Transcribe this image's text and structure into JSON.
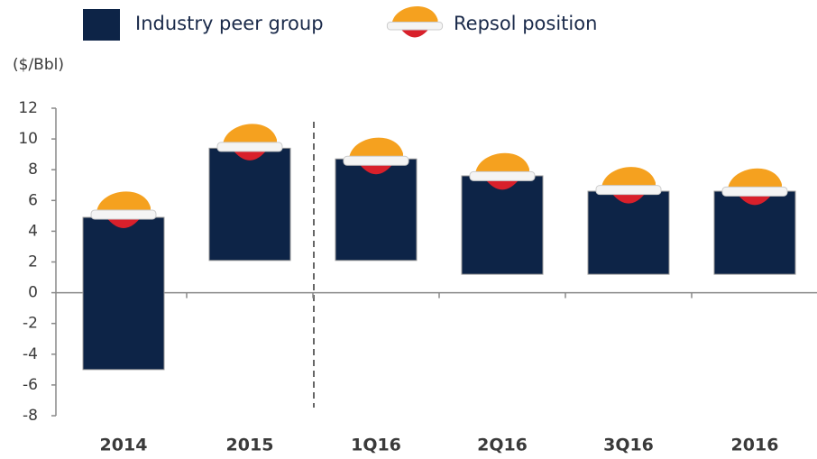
{
  "chart_data": {
    "type": "floating-bar",
    "y_label": "($/Bbl)",
    "categories": [
      "2014",
      "2015",
      "1Q16",
      "2Q16",
      "3Q16",
      "2016"
    ],
    "series": [
      {
        "name": "Industry peer group",
        "color": "#0d2447",
        "low": [
          -5,
          2.1,
          2.1,
          1.2,
          1.2,
          1.2
        ],
        "high": [
          4.9,
          9.4,
          8.7,
          7.6,
          6.6,
          6.6
        ]
      },
      {
        "name": "Repsol position",
        "color": "#f39c1e",
        "values": [
          5.2,
          9.6,
          8.7,
          7.7,
          6.8,
          6.7
        ]
      }
    ],
    "ylim": [
      -8,
      12
    ],
    "yticks": [
      -8,
      -6,
      -4,
      -2,
      0,
      2,
      4,
      6,
      8,
      10,
      12
    ]
  }
}
